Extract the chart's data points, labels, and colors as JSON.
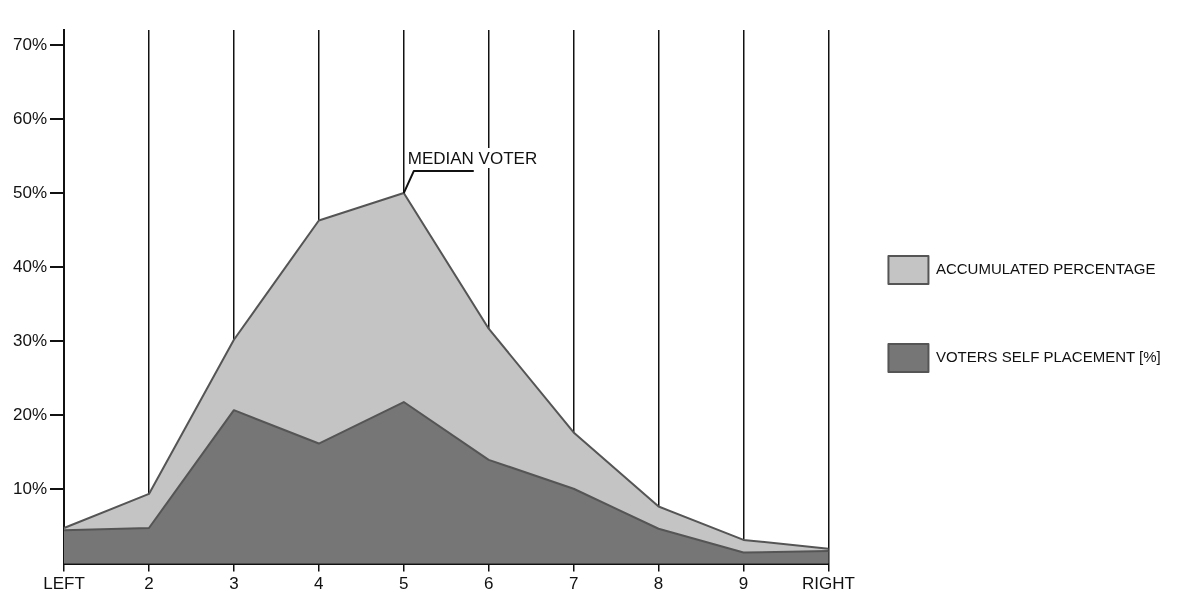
{
  "chart_data": {
    "type": "area",
    "categories": [
      "LEFT",
      "2",
      "3",
      "4",
      "5",
      "6",
      "7",
      "8",
      "9",
      "RIGHT"
    ],
    "series": [
      {
        "name": "ACCUMULATED PERCENTAGE",
        "color": "#c4c4c4",
        "values": [
          4.8,
          9.4,
          30.2,
          46.3,
          50,
          31.7,
          17.7,
          7.7,
          3.2,
          2.0
        ]
      },
      {
        "name": "VOTERS SELF PLACEMENT [%]",
        "color": "#767676",
        "values": [
          4.5,
          4.8,
          20.7,
          16.2,
          21.8,
          14.0,
          10.1,
          4.7,
          1.5,
          1.7
        ]
      }
    ],
    "ylim": [
      0,
      72
    ],
    "yticks": [
      {
        "value": 10,
        "label": "10%"
      },
      {
        "value": 20,
        "label": "20%"
      },
      {
        "value": 30,
        "label": "30%"
      },
      {
        "value": 40,
        "label": "40%"
      },
      {
        "value": 50,
        "label": "50%"
      },
      {
        "value": 60,
        "label": "60%"
      },
      {
        "value": 70,
        "label": "70%"
      }
    ],
    "annotations": [
      {
        "text": "MEDIAN VOTER",
        "x": "5",
        "y": 50
      }
    ],
    "grid": "x",
    "legend": "right"
  }
}
